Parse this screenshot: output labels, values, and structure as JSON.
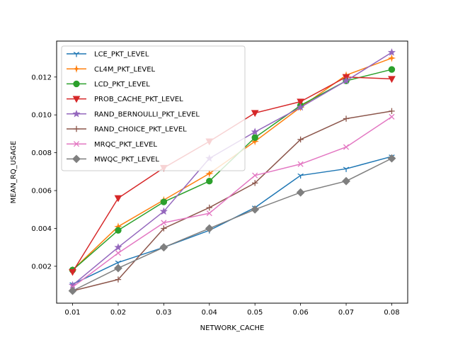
{
  "chart_data": {
    "type": "line",
    "title": "",
    "xlabel": "NETWORK_CACHE",
    "ylabel": "MEAN_RQ_USAGE",
    "x": [
      0.01,
      0.02,
      0.03,
      0.04,
      0.05,
      0.06,
      0.07,
      0.08
    ],
    "x_tick_labels": [
      "0.01",
      "0.02",
      "0.03",
      "0.04",
      "0.05",
      "0.06",
      "0.07",
      "0.08"
    ],
    "xlim": [
      0.0065,
      0.0835
    ],
    "ylim": [
      5e-05,
      0.0139
    ],
    "y_ticks": [
      0.002,
      0.004,
      0.006,
      0.008,
      0.01,
      0.012
    ],
    "y_tick_labels": [
      "0.002",
      "0.004",
      "0.006",
      "0.008",
      "0.010",
      "0.012"
    ],
    "grid": false,
    "legend_position": "top-left",
    "series": [
      {
        "name": "LCE_PKT_LEVEL",
        "color": "#1f77b4",
        "marker": "tri_down",
        "values": [
          0.00105,
          0.0022,
          0.003,
          0.0039,
          0.0051,
          0.0068,
          0.00715,
          0.0078
        ]
      },
      {
        "name": "CL4M_PKT_LEVEL",
        "color": "#ff7f0e",
        "marker": "star4",
        "values": [
          0.0018,
          0.0041,
          0.0055,
          0.0069,
          0.0086,
          0.0104,
          0.0121,
          0.013
        ]
      },
      {
        "name": "LCD_PKT_LEVEL",
        "color": "#2ca02c",
        "marker": "circle",
        "values": [
          0.0018,
          0.0039,
          0.0054,
          0.0065,
          0.0088,
          0.0105,
          0.0118,
          0.0124
        ]
      },
      {
        "name": "PROB_CACHE_PKT_LEVEL",
        "color": "#d62728",
        "marker": "triangle_down",
        "values": [
          0.0017,
          0.0056,
          0.0072,
          0.0086,
          0.0101,
          0.0107,
          0.012,
          0.0119
        ]
      },
      {
        "name": "RAND_BERNOULLI_PKT_LEVEL",
        "color": "#9467bd",
        "marker": "star",
        "values": [
          0.001,
          0.003,
          0.0049,
          0.0077,
          0.0091,
          0.0104,
          0.0118,
          0.0133
        ]
      },
      {
        "name": "RAND_CHOICE_PKT_LEVEL",
        "color": "#8c564b",
        "marker": "plus_thin",
        "values": [
          0.0007,
          0.0013,
          0.004,
          0.0051,
          0.0064,
          0.0087,
          0.0098,
          0.0102
        ]
      },
      {
        "name": "MRQC_PKT_LEVEL",
        "color": "#e377c2",
        "marker": "x",
        "values": [
          0.0009,
          0.0027,
          0.0043,
          0.0048,
          0.0068,
          0.0074,
          0.0083,
          0.0099
        ]
      },
      {
        "name": "MWQC_PKT_LEVEL",
        "color": "#7f7f7f",
        "marker": "diamond",
        "values": [
          0.0007,
          0.0019,
          0.003,
          0.004,
          0.005,
          0.0059,
          0.0065,
          0.0077
        ]
      }
    ]
  }
}
